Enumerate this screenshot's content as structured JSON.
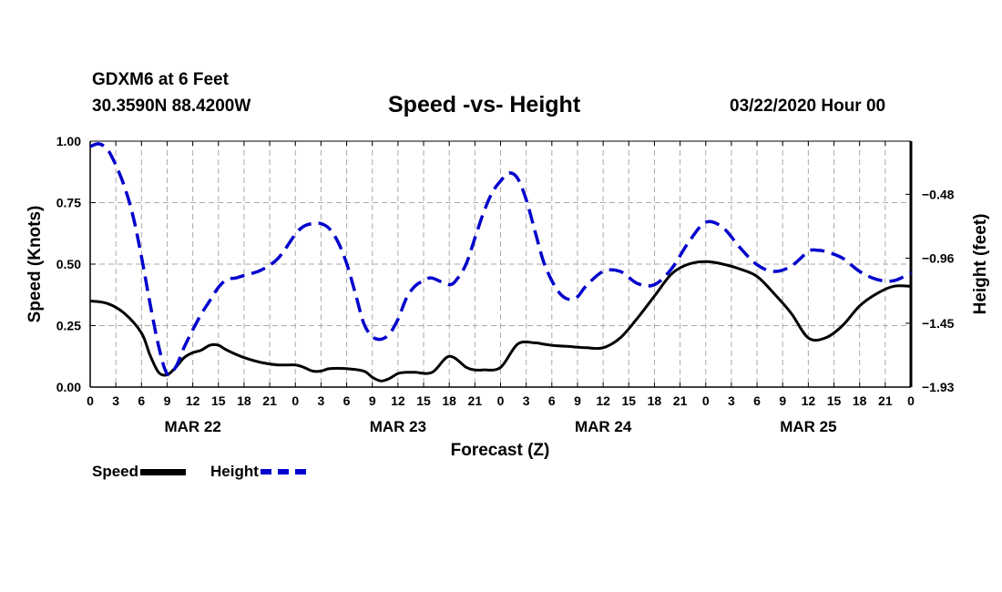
{
  "header": {
    "station": "GDXM6 at 6 Feet",
    "coords": "30.3590N 88.4200W",
    "title": "Speed -vs- Height",
    "date": "03/22/2020 Hour 00"
  },
  "legend": {
    "speed": "Speed",
    "height": "Height"
  },
  "colors": {
    "speed": "#000000",
    "height": "#0000cc",
    "grid": "#aaaaaa"
  },
  "chart_data": {
    "type": "line",
    "xlabel": "Forecast (Z)",
    "ylabel_left": "Speed (Knots)",
    "ylabel_right": "Height (feet)",
    "ylim_left": [
      0,
      1
    ],
    "ylim_right": [
      -1.93,
      -0.08
    ],
    "xlim_hours": [
      0,
      96
    ],
    "y_ticks_left": [
      {
        "v": 0,
        "label": "0.00"
      },
      {
        "v": 0.25,
        "label": "0.25"
      },
      {
        "v": 0.5,
        "label": "0.50"
      },
      {
        "v": 0.75,
        "label": "0.75"
      },
      {
        "v": 1,
        "label": "1.00"
      }
    ],
    "y_ticks_right": [
      {
        "v": -1.93,
        "label": "−1.93"
      },
      {
        "v": -1.45,
        "label": "−1.45"
      },
      {
        "v": -0.96,
        "label": "−0.96"
      },
      {
        "v": -0.48,
        "label": "−0.48"
      }
    ],
    "x_tick_labels": [
      "0",
      "3",
      "6",
      "9",
      "12",
      "15",
      "18",
      "21",
      "0",
      "3",
      "6",
      "9",
      "12",
      "15",
      "18",
      "21",
      "0",
      "3",
      "6",
      "9",
      "12",
      "15",
      "18",
      "21",
      "0",
      "3",
      "6",
      "9",
      "12",
      "15",
      "18",
      "21",
      "0"
    ],
    "day_labels": [
      {
        "hour": 12,
        "label": "MAR 22"
      },
      {
        "hour": 36,
        "label": "MAR 23"
      },
      {
        "hour": 60,
        "label": "MAR 24"
      },
      {
        "hour": 84,
        "label": "MAR 25"
      }
    ],
    "series": [
      {
        "name": "Speed",
        "axis": "left",
        "x": [
          0,
          2,
          4,
          6,
          7,
          8,
          9,
          10,
          11,
          12,
          13,
          14,
          15,
          16,
          18,
          20,
          22,
          24,
          25,
          26,
          27,
          28,
          30,
          32,
          33,
          34,
          35,
          36,
          37,
          38,
          40,
          42,
          44,
          45,
          46,
          48,
          50,
          52,
          53,
          54,
          56,
          58,
          60,
          62,
          64,
          66,
          68,
          70,
          72,
          74,
          76,
          78,
          80,
          82,
          84,
          86,
          88,
          90,
          92,
          94,
          96
        ],
        "values": [
          0.35,
          0.34,
          0.3,
          0.22,
          0.13,
          0.06,
          0.05,
          0.08,
          0.12,
          0.14,
          0.15,
          0.17,
          0.17,
          0.15,
          0.12,
          0.1,
          0.09,
          0.09,
          0.08,
          0.065,
          0.065,
          0.075,
          0.075,
          0.065,
          0.04,
          0.025,
          0.035,
          0.055,
          0.06,
          0.06,
          0.06,
          0.125,
          0.08,
          0.07,
          0.07,
          0.08,
          0.175,
          0.18,
          0.175,
          0.17,
          0.165,
          0.16,
          0.16,
          0.2,
          0.28,
          0.37,
          0.46,
          0.5,
          0.51,
          0.5,
          0.48,
          0.45,
          0.38,
          0.3,
          0.2,
          0.2,
          0.25,
          0.33,
          0.38,
          0.41,
          0.41
        ]
      },
      {
        "name": "Height",
        "axis": "right",
        "x": [
          0,
          1,
          2,
          3,
          4,
          5,
          6,
          7,
          8,
          9,
          10,
          11,
          12,
          13,
          14,
          15,
          16,
          17,
          18,
          20,
          22,
          24,
          25,
          26,
          27,
          28,
          29,
          30,
          31,
          32,
          33,
          34,
          35,
          36,
          37,
          38,
          39,
          40,
          42,
          43,
          44,
          45,
          46,
          47,
          48,
          49,
          50,
          51,
          52,
          53,
          54,
          55,
          56,
          57,
          58,
          60,
          62,
          64,
          66,
          68,
          70,
          72,
          74,
          76,
          78,
          80,
          82,
          84,
          85,
          86,
          88,
          90,
          92,
          94,
          96
        ],
        "values": [
          -0.12,
          -0.1,
          -0.14,
          -0.26,
          -0.42,
          -0.64,
          -0.95,
          -1.3,
          -1.62,
          -1.83,
          -1.78,
          -1.63,
          -1.5,
          -1.38,
          -1.28,
          -1.18,
          -1.12,
          -1.11,
          -1.09,
          -1.05,
          -0.96,
          -0.78,
          -0.72,
          -0.7,
          -0.7,
          -0.74,
          -0.84,
          -1.0,
          -1.22,
          -1.45,
          -1.55,
          -1.57,
          -1.53,
          -1.42,
          -1.26,
          -1.17,
          -1.13,
          -1.11,
          -1.16,
          -1.11,
          -1.0,
          -0.81,
          -0.62,
          -0.47,
          -0.38,
          -0.32,
          -0.36,
          -0.52,
          -0.75,
          -0.98,
          -1.13,
          -1.23,
          -1.27,
          -1.25,
          -1.17,
          -1.06,
          -1.06,
          -1.15,
          -1.16,
          -1.04,
          -0.84,
          -0.69,
          -0.73,
          -0.88,
          -1.01,
          -1.06,
          -1.02,
          -0.91,
          -0.9,
          -0.91,
          -0.96,
          -1.06,
          -1.12,
          -1.13,
          -1.07
        ]
      }
    ]
  }
}
